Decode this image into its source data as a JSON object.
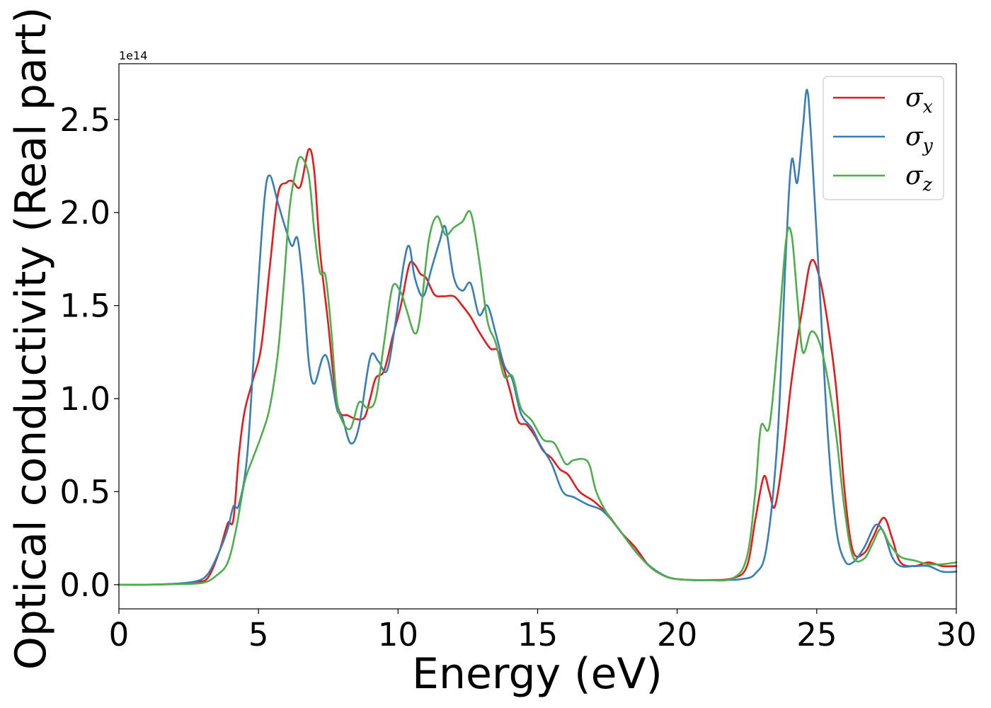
{
  "chart_data": {
    "type": "line",
    "xlabel": "Energy (eV)",
    "ylabel": "Optical conductivity (Real part)",
    "y_offset_text": "1e14",
    "y_scale_factor": 100000000000000,
    "xlim": [
      0,
      30
    ],
    "ylim": [
      -0.13,
      2.8
    ],
    "x_ticks": [
      0,
      5,
      10,
      15,
      20,
      25,
      30
    ],
    "x_tick_labels": [
      "0",
      "5",
      "10",
      "15",
      "20",
      "25",
      "30"
    ],
    "y_ticks": [
      0.0,
      0.5,
      1.0,
      1.5,
      2.0,
      2.5
    ],
    "y_tick_labels": [
      "0.0",
      "0.5",
      "1.0",
      "1.5",
      "2.0",
      "2.5"
    ],
    "grid": false,
    "legend_position": "top-right",
    "series": [
      {
        "name": "σx",
        "legend_base": "σ",
        "legend_sub": "x",
        "color": "#e41a1c",
        "points": [
          [
            0,
            0
          ],
          [
            1,
            0
          ],
          [
            2,
            0.005
          ],
          [
            2.8,
            0.015
          ],
          [
            3.2,
            0.04
          ],
          [
            3.6,
            0.18
          ],
          [
            3.9,
            0.33
          ],
          [
            4.1,
            0.35
          ],
          [
            4.3,
            0.7
          ],
          [
            4.5,
            0.93
          ],
          [
            4.8,
            1.1
          ],
          [
            5.1,
            1.28
          ],
          [
            5.4,
            1.7
          ],
          [
            5.7,
            2.1
          ],
          [
            6.0,
            2.16
          ],
          [
            6.2,
            2.17
          ],
          [
            6.5,
            2.14
          ],
          [
            6.8,
            2.34
          ],
          [
            7.0,
            2.22
          ],
          [
            7.2,
            1.8
          ],
          [
            7.5,
            1.4
          ],
          [
            7.7,
            1.1
          ],
          [
            7.9,
            0.93
          ],
          [
            8.2,
            0.91
          ],
          [
            8.5,
            0.89
          ],
          [
            8.8,
            0.9
          ],
          [
            9.0,
            1.0
          ],
          [
            9.2,
            1.11
          ],
          [
            9.5,
            1.15
          ],
          [
            9.8,
            1.33
          ],
          [
            10.1,
            1.5
          ],
          [
            10.4,
            1.72
          ],
          [
            10.6,
            1.72
          ],
          [
            10.8,
            1.67
          ],
          [
            11.0,
            1.65
          ],
          [
            11.3,
            1.56
          ],
          [
            11.6,
            1.55
          ],
          [
            12.0,
            1.55
          ],
          [
            12.3,
            1.5
          ],
          [
            12.6,
            1.44
          ],
          [
            12.9,
            1.36
          ],
          [
            13.3,
            1.27
          ],
          [
            13.6,
            1.25
          ],
          [
            14.0,
            1.05
          ],
          [
            14.3,
            0.88
          ],
          [
            14.6,
            0.86
          ],
          [
            14.9,
            0.8
          ],
          [
            15.2,
            0.72
          ],
          [
            15.5,
            0.68
          ],
          [
            15.8,
            0.62
          ],
          [
            16.1,
            0.59
          ],
          [
            16.5,
            0.5
          ],
          [
            17.0,
            0.45
          ],
          [
            17.5,
            0.38
          ],
          [
            18.0,
            0.28
          ],
          [
            18.5,
            0.2
          ],
          [
            19.0,
            0.1
          ],
          [
            19.5,
            0.05
          ],
          [
            20,
            0.03
          ],
          [
            21,
            0.025
          ],
          [
            22,
            0.035
          ],
          [
            22.5,
            0.1
          ],
          [
            22.8,
            0.35
          ],
          [
            23.1,
            0.58
          ],
          [
            23.3,
            0.5
          ],
          [
            23.5,
            0.42
          ],
          [
            23.8,
            0.7
          ],
          [
            24.1,
            1.1
          ],
          [
            24.5,
            1.5
          ],
          [
            24.8,
            1.74
          ],
          [
            25.1,
            1.65
          ],
          [
            25.4,
            1.4
          ],
          [
            25.7,
            1.05
          ],
          [
            26.0,
            0.5
          ],
          [
            26.3,
            0.18
          ],
          [
            26.7,
            0.17
          ],
          [
            27.0,
            0.25
          ],
          [
            27.4,
            0.36
          ],
          [
            27.7,
            0.25
          ],
          [
            28.0,
            0.12
          ],
          [
            28.5,
            0.1
          ],
          [
            29.0,
            0.12
          ],
          [
            29.5,
            0.1
          ],
          [
            30,
            0.1
          ]
        ]
      },
      {
        "name": "σy",
        "legend_base": "σ",
        "legend_sub": "y",
        "color": "#377eb8",
        "points": [
          [
            0,
            0
          ],
          [
            1,
            0
          ],
          [
            2,
            0.005
          ],
          [
            2.8,
            0.02
          ],
          [
            3.2,
            0.06
          ],
          [
            3.6,
            0.18
          ],
          [
            3.9,
            0.3
          ],
          [
            4.1,
            0.42
          ],
          [
            4.3,
            0.43
          ],
          [
            4.6,
            0.7
          ],
          [
            4.9,
            1.4
          ],
          [
            5.2,
            2.05
          ],
          [
            5.4,
            2.2
          ],
          [
            5.7,
            2.05
          ],
          [
            6.0,
            1.9
          ],
          [
            6.2,
            1.82
          ],
          [
            6.4,
            1.86
          ],
          [
            6.6,
            1.6
          ],
          [
            6.8,
            1.2
          ],
          [
            7.0,
            1.08
          ],
          [
            7.3,
            1.22
          ],
          [
            7.5,
            1.2
          ],
          [
            7.8,
            0.95
          ],
          [
            8.0,
            0.9
          ],
          [
            8.3,
            0.76
          ],
          [
            8.6,
            0.85
          ],
          [
            9.0,
            1.22
          ],
          [
            9.3,
            1.2
          ],
          [
            9.6,
            1.15
          ],
          [
            9.9,
            1.4
          ],
          [
            10.2,
            1.72
          ],
          [
            10.4,
            1.82
          ],
          [
            10.6,
            1.65
          ],
          [
            10.9,
            1.55
          ],
          [
            11.2,
            1.7
          ],
          [
            11.5,
            1.85
          ],
          [
            11.7,
            1.92
          ],
          [
            12.0,
            1.65
          ],
          [
            12.3,
            1.58
          ],
          [
            12.6,
            1.62
          ],
          [
            12.9,
            1.45
          ],
          [
            13.2,
            1.5
          ],
          [
            13.5,
            1.35
          ],
          [
            13.8,
            1.18
          ],
          [
            14.1,
            1.1
          ],
          [
            14.4,
            0.92
          ],
          [
            14.8,
            0.84
          ],
          [
            15.1,
            0.75
          ],
          [
            15.5,
            0.65
          ],
          [
            15.9,
            0.5
          ],
          [
            16.3,
            0.47
          ],
          [
            16.8,
            0.43
          ],
          [
            17.3,
            0.4
          ],
          [
            17.8,
            0.32
          ],
          [
            18.3,
            0.22
          ],
          [
            18.8,
            0.13
          ],
          [
            19.3,
            0.07
          ],
          [
            19.8,
            0.035
          ],
          [
            20.5,
            0.025
          ],
          [
            21.5,
            0.025
          ],
          [
            22.3,
            0.03
          ],
          [
            22.8,
            0.06
          ],
          [
            23.2,
            0.2
          ],
          [
            23.6,
            0.8
          ],
          [
            23.9,
            1.8
          ],
          [
            24.1,
            2.28
          ],
          [
            24.3,
            2.16
          ],
          [
            24.5,
            2.45
          ],
          [
            24.65,
            2.66
          ],
          [
            24.8,
            2.4
          ],
          [
            25.1,
            1.6
          ],
          [
            25.4,
            0.8
          ],
          [
            25.7,
            0.3
          ],
          [
            26.0,
            0.13
          ],
          [
            26.3,
            0.12
          ],
          [
            26.7,
            0.2
          ],
          [
            27.1,
            0.32
          ],
          [
            27.4,
            0.28
          ],
          [
            27.7,
            0.15
          ],
          [
            28.0,
            0.1
          ],
          [
            28.5,
            0.1
          ],
          [
            29.0,
            0.1
          ],
          [
            29.5,
            0.07
          ],
          [
            30,
            0.07
          ]
        ]
      },
      {
        "name": "σz",
        "legend_base": "σ",
        "legend_sub": "z",
        "color": "#4daf4a",
        "points": [
          [
            0,
            0
          ],
          [
            1,
            0
          ],
          [
            2,
            0.003
          ],
          [
            3.0,
            0.01
          ],
          [
            3.5,
            0.05
          ],
          [
            3.9,
            0.12
          ],
          [
            4.2,
            0.3
          ],
          [
            4.5,
            0.55
          ],
          [
            4.8,
            0.68
          ],
          [
            5.1,
            0.8
          ],
          [
            5.4,
            0.95
          ],
          [
            5.7,
            1.25
          ],
          [
            5.9,
            1.6
          ],
          [
            6.1,
            2.0
          ],
          [
            6.3,
            2.2
          ],
          [
            6.5,
            2.3
          ],
          [
            6.8,
            2.2
          ],
          [
            7.0,
            1.9
          ],
          [
            7.2,
            1.68
          ],
          [
            7.4,
            1.66
          ],
          [
            7.6,
            1.38
          ],
          [
            7.8,
            1.0
          ],
          [
            8.0,
            0.88
          ],
          [
            8.3,
            0.84
          ],
          [
            8.6,
            0.98
          ],
          [
            8.9,
            0.95
          ],
          [
            9.2,
            1.0
          ],
          [
            9.5,
            1.3
          ],
          [
            9.8,
            1.6
          ],
          [
            10.1,
            1.57
          ],
          [
            10.3,
            1.48
          ],
          [
            10.6,
            1.35
          ],
          [
            10.8,
            1.45
          ],
          [
            11.1,
            1.85
          ],
          [
            11.4,
            1.98
          ],
          [
            11.7,
            1.88
          ],
          [
            12.0,
            1.92
          ],
          [
            12.3,
            1.95
          ],
          [
            12.6,
            2.0
          ],
          [
            12.9,
            1.75
          ],
          [
            13.2,
            1.42
          ],
          [
            13.5,
            1.3
          ],
          [
            13.8,
            1.12
          ],
          [
            14.1,
            1.12
          ],
          [
            14.4,
            0.95
          ],
          [
            14.8,
            0.88
          ],
          [
            15.2,
            0.78
          ],
          [
            15.6,
            0.76
          ],
          [
            16.0,
            0.65
          ],
          [
            16.3,
            0.67
          ],
          [
            16.8,
            0.66
          ],
          [
            17.1,
            0.5
          ],
          [
            17.5,
            0.38
          ],
          [
            18.0,
            0.28
          ],
          [
            18.5,
            0.18
          ],
          [
            19.0,
            0.1
          ],
          [
            19.5,
            0.05
          ],
          [
            20,
            0.03
          ],
          [
            21,
            0.025
          ],
          [
            22,
            0.035
          ],
          [
            22.5,
            0.15
          ],
          [
            22.8,
            0.5
          ],
          [
            23.0,
            0.85
          ],
          [
            23.3,
            0.85
          ],
          [
            23.6,
            1.3
          ],
          [
            23.9,
            1.85
          ],
          [
            24.1,
            1.88
          ],
          [
            24.3,
            1.55
          ],
          [
            24.5,
            1.25
          ],
          [
            24.8,
            1.36
          ],
          [
            25.1,
            1.3
          ],
          [
            25.4,
            1.1
          ],
          [
            25.7,
            0.8
          ],
          [
            26.0,
            0.4
          ],
          [
            26.3,
            0.15
          ],
          [
            26.7,
            0.14
          ],
          [
            27.0,
            0.22
          ],
          [
            27.3,
            0.3
          ],
          [
            27.6,
            0.22
          ],
          [
            28.0,
            0.15
          ],
          [
            28.5,
            0.13
          ],
          [
            29.0,
            0.11
          ],
          [
            29.5,
            0.11
          ],
          [
            30,
            0.12
          ]
        ]
      }
    ]
  }
}
